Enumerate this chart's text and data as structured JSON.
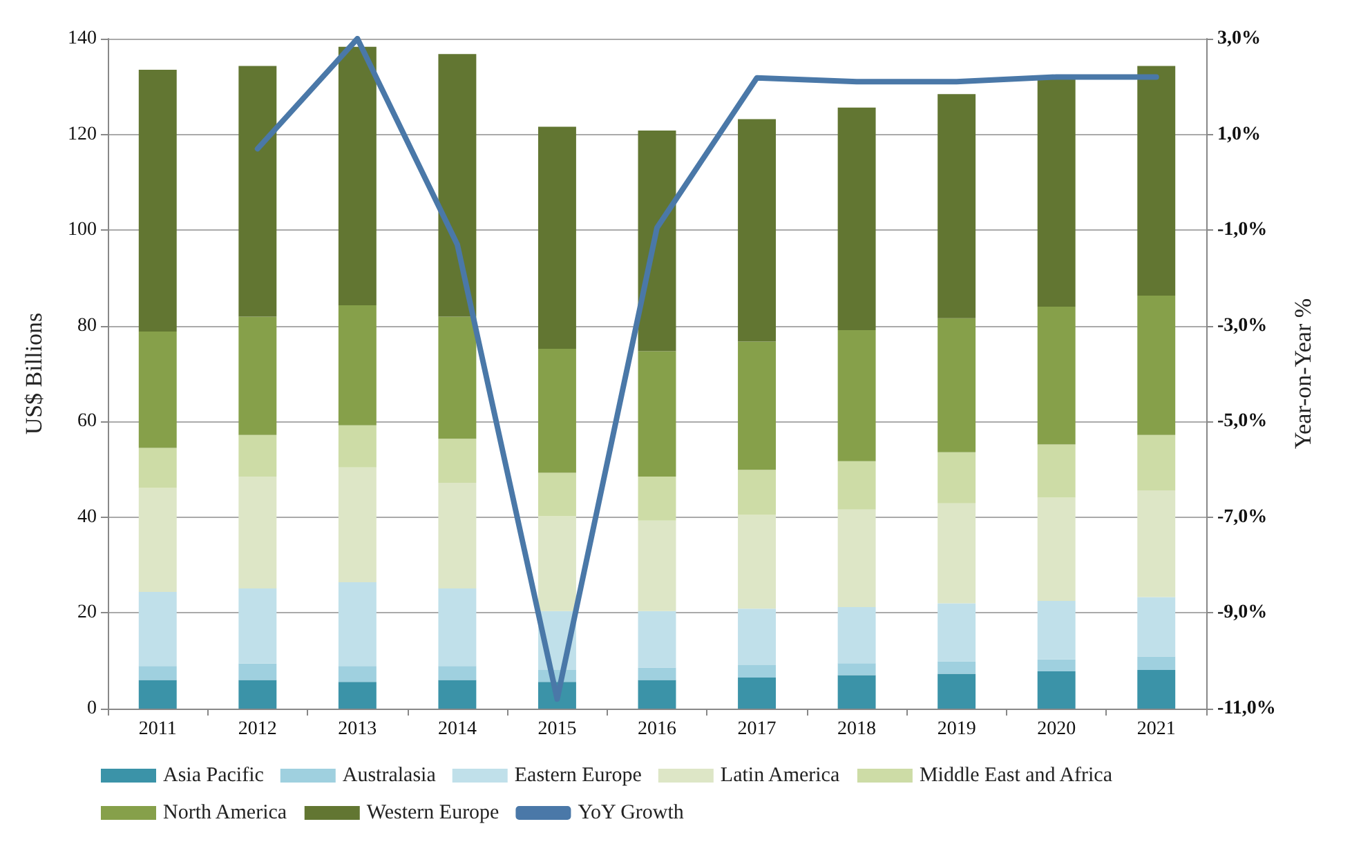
{
  "chart_data": {
    "type": "bar",
    "stacked": true,
    "ylabel": "US$ Billions",
    "y2label": "Year-on-Year %",
    "categories": [
      "2011",
      "2012",
      "2013",
      "2014",
      "2015",
      "2016",
      "2017",
      "2018",
      "2019",
      "2020",
      "2021"
    ],
    "series": [
      {
        "name": "Asia Pacific",
        "color": "#3b93a8",
        "values": [
          6.0,
          6.0,
          5.6,
          6.0,
          5.6,
          6.0,
          6.5,
          7.0,
          7.3,
          7.8,
          8.1
        ]
      },
      {
        "name": "Australasia",
        "color": "#9fd0df",
        "values": [
          2.9,
          3.4,
          3.3,
          2.9,
          2.5,
          2.6,
          2.6,
          2.5,
          2.6,
          2.5,
          2.8
        ]
      },
      {
        "name": "Eastern Europe",
        "color": "#c0e0ea",
        "values": [
          15.5,
          15.7,
          17.5,
          16.2,
          12.3,
          11.8,
          11.8,
          11.7,
          12.1,
          12.2,
          12.4
        ]
      },
      {
        "name": "Latin America",
        "color": "#dde6c6",
        "values": [
          21.7,
          23.4,
          24.0,
          22.1,
          19.8,
          18.9,
          19.6,
          20.4,
          20.9,
          21.6,
          22.3
        ]
      },
      {
        "name": "Middle East and Africa",
        "color": "#cddca6",
        "values": [
          8.4,
          8.7,
          8.8,
          9.2,
          9.1,
          9.2,
          9.4,
          10.1,
          10.7,
          11.1,
          11.6
        ]
      },
      {
        "name": "North America",
        "color": "#86a04a",
        "values": [
          24.3,
          24.7,
          25.1,
          25.5,
          25.9,
          26.2,
          26.8,
          27.4,
          28.0,
          28.8,
          29.1
        ]
      },
      {
        "name": "Western Europe",
        "color": "#627632",
        "values": [
          54.7,
          52.4,
          54.0,
          54.9,
          46.4,
          46.1,
          46.5,
          46.5,
          46.8,
          47.5,
          48.0
        ]
      },
      {
        "name": "YoY Growth",
        "type": "line",
        "axis": "y2",
        "color": "#4a78a8",
        "values": [
          null,
          0.7,
          3.0,
          -1.3,
          -10.8,
          -0.95,
          2.18,
          2.1,
          2.1,
          2.2,
          2.2
        ]
      }
    ],
    "ylim": [
      0,
      140
    ],
    "yticks": [
      0,
      20,
      40,
      60,
      80,
      100,
      120,
      140
    ],
    "y2lim": [
      -11,
      3
    ],
    "y2ticks": [
      {
        "value": -11,
        "label": "-11,0%"
      },
      {
        "value": -9,
        "label": "-9,0%"
      },
      {
        "value": -7,
        "label": "-7,0%"
      },
      {
        "value": -5,
        "label": "-5,0%"
      },
      {
        "value": -3,
        "label": "-3,0%"
      },
      {
        "value": -1,
        "label": "-1,0%"
      },
      {
        "value": 1,
        "label": "1,0%"
      },
      {
        "value": 3,
        "label": "3,0%"
      }
    ],
    "grid": "y",
    "legend": "bottom",
    "marker": "none",
    "line_style": "solid"
  }
}
